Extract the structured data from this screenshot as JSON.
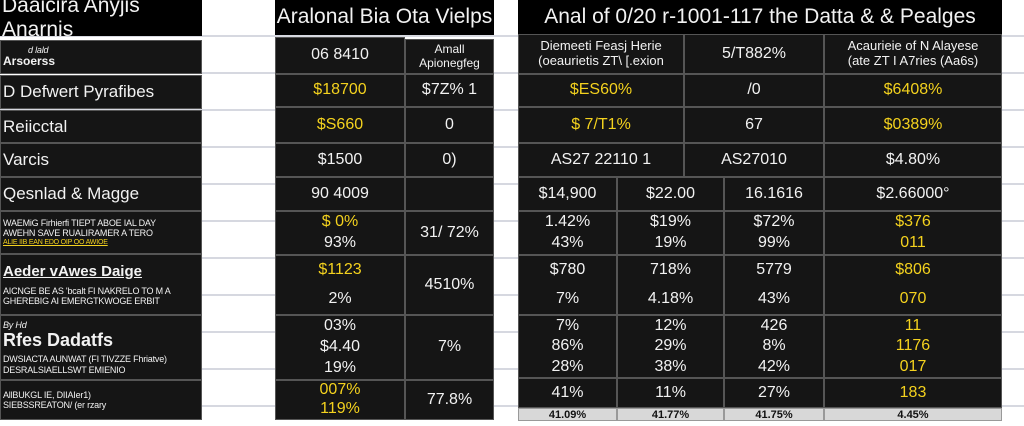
{
  "left_table": {
    "title": "Daaicira Anyjis Anarnis",
    "rows": [
      {
        "small": "d lald",
        "label": "Arsoerss"
      },
      {
        "label": "D Defwert Pyrafibes"
      },
      {
        "label": "Reiicctal"
      },
      {
        "label": "Varcis"
      },
      {
        "label": "Qesnlad & Magge"
      },
      {
        "lines": [
          "WAEMiG Firhierfi TIEPT ABOE IAL DAY",
          "AWEHN SAVE RUALIRAMER A TERO",
          "ALIE IIB EAN EDO OIP OO AWIOE"
        ]
      },
      {
        "label": "Aeder vAwes Daige",
        "lines": [
          "AICNGE BE AS 'bcalt FI NAKRELO TO M A",
          "GHEREBIG AI EMERGTKWOGE ERBIT"
        ]
      },
      {
        "small": "By Hd",
        "label": "Rfes Dadatfs",
        "lines": [
          "DWSIACTA AUNWAT (FI TIVZZE Fhriatve)",
          "DESRALSIAELLSWT EMIENIO"
        ]
      },
      {
        "lines": [
          "AllBUKGL IE, DIIAIer1)",
          "SIEBSSREATON/ (er rzary"
        ]
      }
    ]
  },
  "middle_table": {
    "title": "Aralonal Bia Ota Vielps",
    "header": {
      "col1": "06 8410",
      "col2_line1": "Amall",
      "col2_line2": "Apionegfeg"
    },
    "rows": [
      {
        "col1": [
          "$18700"
        ],
        "col2": "$7Z% 1"
      },
      {
        "col1": [
          "$S660"
        ],
        "col2": "0"
      },
      {
        "col1": [
          "$1500"
        ],
        "col2": "0)"
      },
      {
        "col1": [
          "90 4009"
        ],
        "col2": ""
      },
      {
        "col1": [
          "$ 0%",
          "93%"
        ],
        "col2": "31/ 72%"
      },
      {
        "col1": [
          "$1123",
          "2%"
        ],
        "col2": "4510%"
      },
      {
        "col1": [
          "03%",
          "$4.40",
          "19%"
        ],
        "col2": "7%"
      },
      {
        "col1": [
          "007%",
          "119%"
        ],
        "col2": "77.8%"
      }
    ]
  },
  "right_table": {
    "title": "Anal of 0/20 r-1001-117 the Datta & & Pealges",
    "header": {
      "col1": [
        "Diemeeti Feasj Herie",
        "(oeaurietis ZT\\ [.exion"
      ],
      "col2": "5/T882%",
      "col3": [
        "Acaurieie of N Alayese",
        "(ate ZT I A7ries (Aa6s)"
      ]
    },
    "rows3": [
      [
        "$ES60%",
        "/0",
        "$6408%"
      ],
      [
        "$ 7/T1%",
        "67",
        "$0389%"
      ],
      [
        "AS27 22110 1",
        "AS27010",
        "$4.80%"
      ]
    ],
    "rows4": [
      [
        [
          "$14,900"
        ],
        [
          "$22.00"
        ],
        [
          "16.1616"
        ],
        [
          "$2.66000°"
        ]
      ],
      [
        [
          "1.42%",
          "43%"
        ],
        [
          "$19%",
          "19%"
        ],
        [
          "$72%",
          "99%"
        ],
        [
          "$376",
          "011"
        ]
      ],
      [
        [
          "$780",
          "7%"
        ],
        [
          "718%",
          "4.18%"
        ],
        [
          "5779",
          "43%"
        ],
        [
          "$806",
          "070"
        ]
      ],
      [
        [
          "7%",
          "86%",
          "28%"
        ],
        [
          "12%",
          "29%",
          "38%"
        ],
        [
          "426",
          "8%",
          "42%"
        ],
        [
          "11",
          "1176",
          "017"
        ]
      ],
      [
        [
          "41%"
        ],
        [
          "11%"
        ],
        [
          "27%"
        ],
        [
          "183"
        ]
      ]
    ],
    "footer": [
      "41.09%",
      "41.77%",
      "41.75%",
      "4.45%"
    ]
  },
  "colors": {
    "highlight": "#f4d21e",
    "cell_bg": "#151515",
    "title_bg": "#000000",
    "footer_bg": "#d8d8d8"
  }
}
